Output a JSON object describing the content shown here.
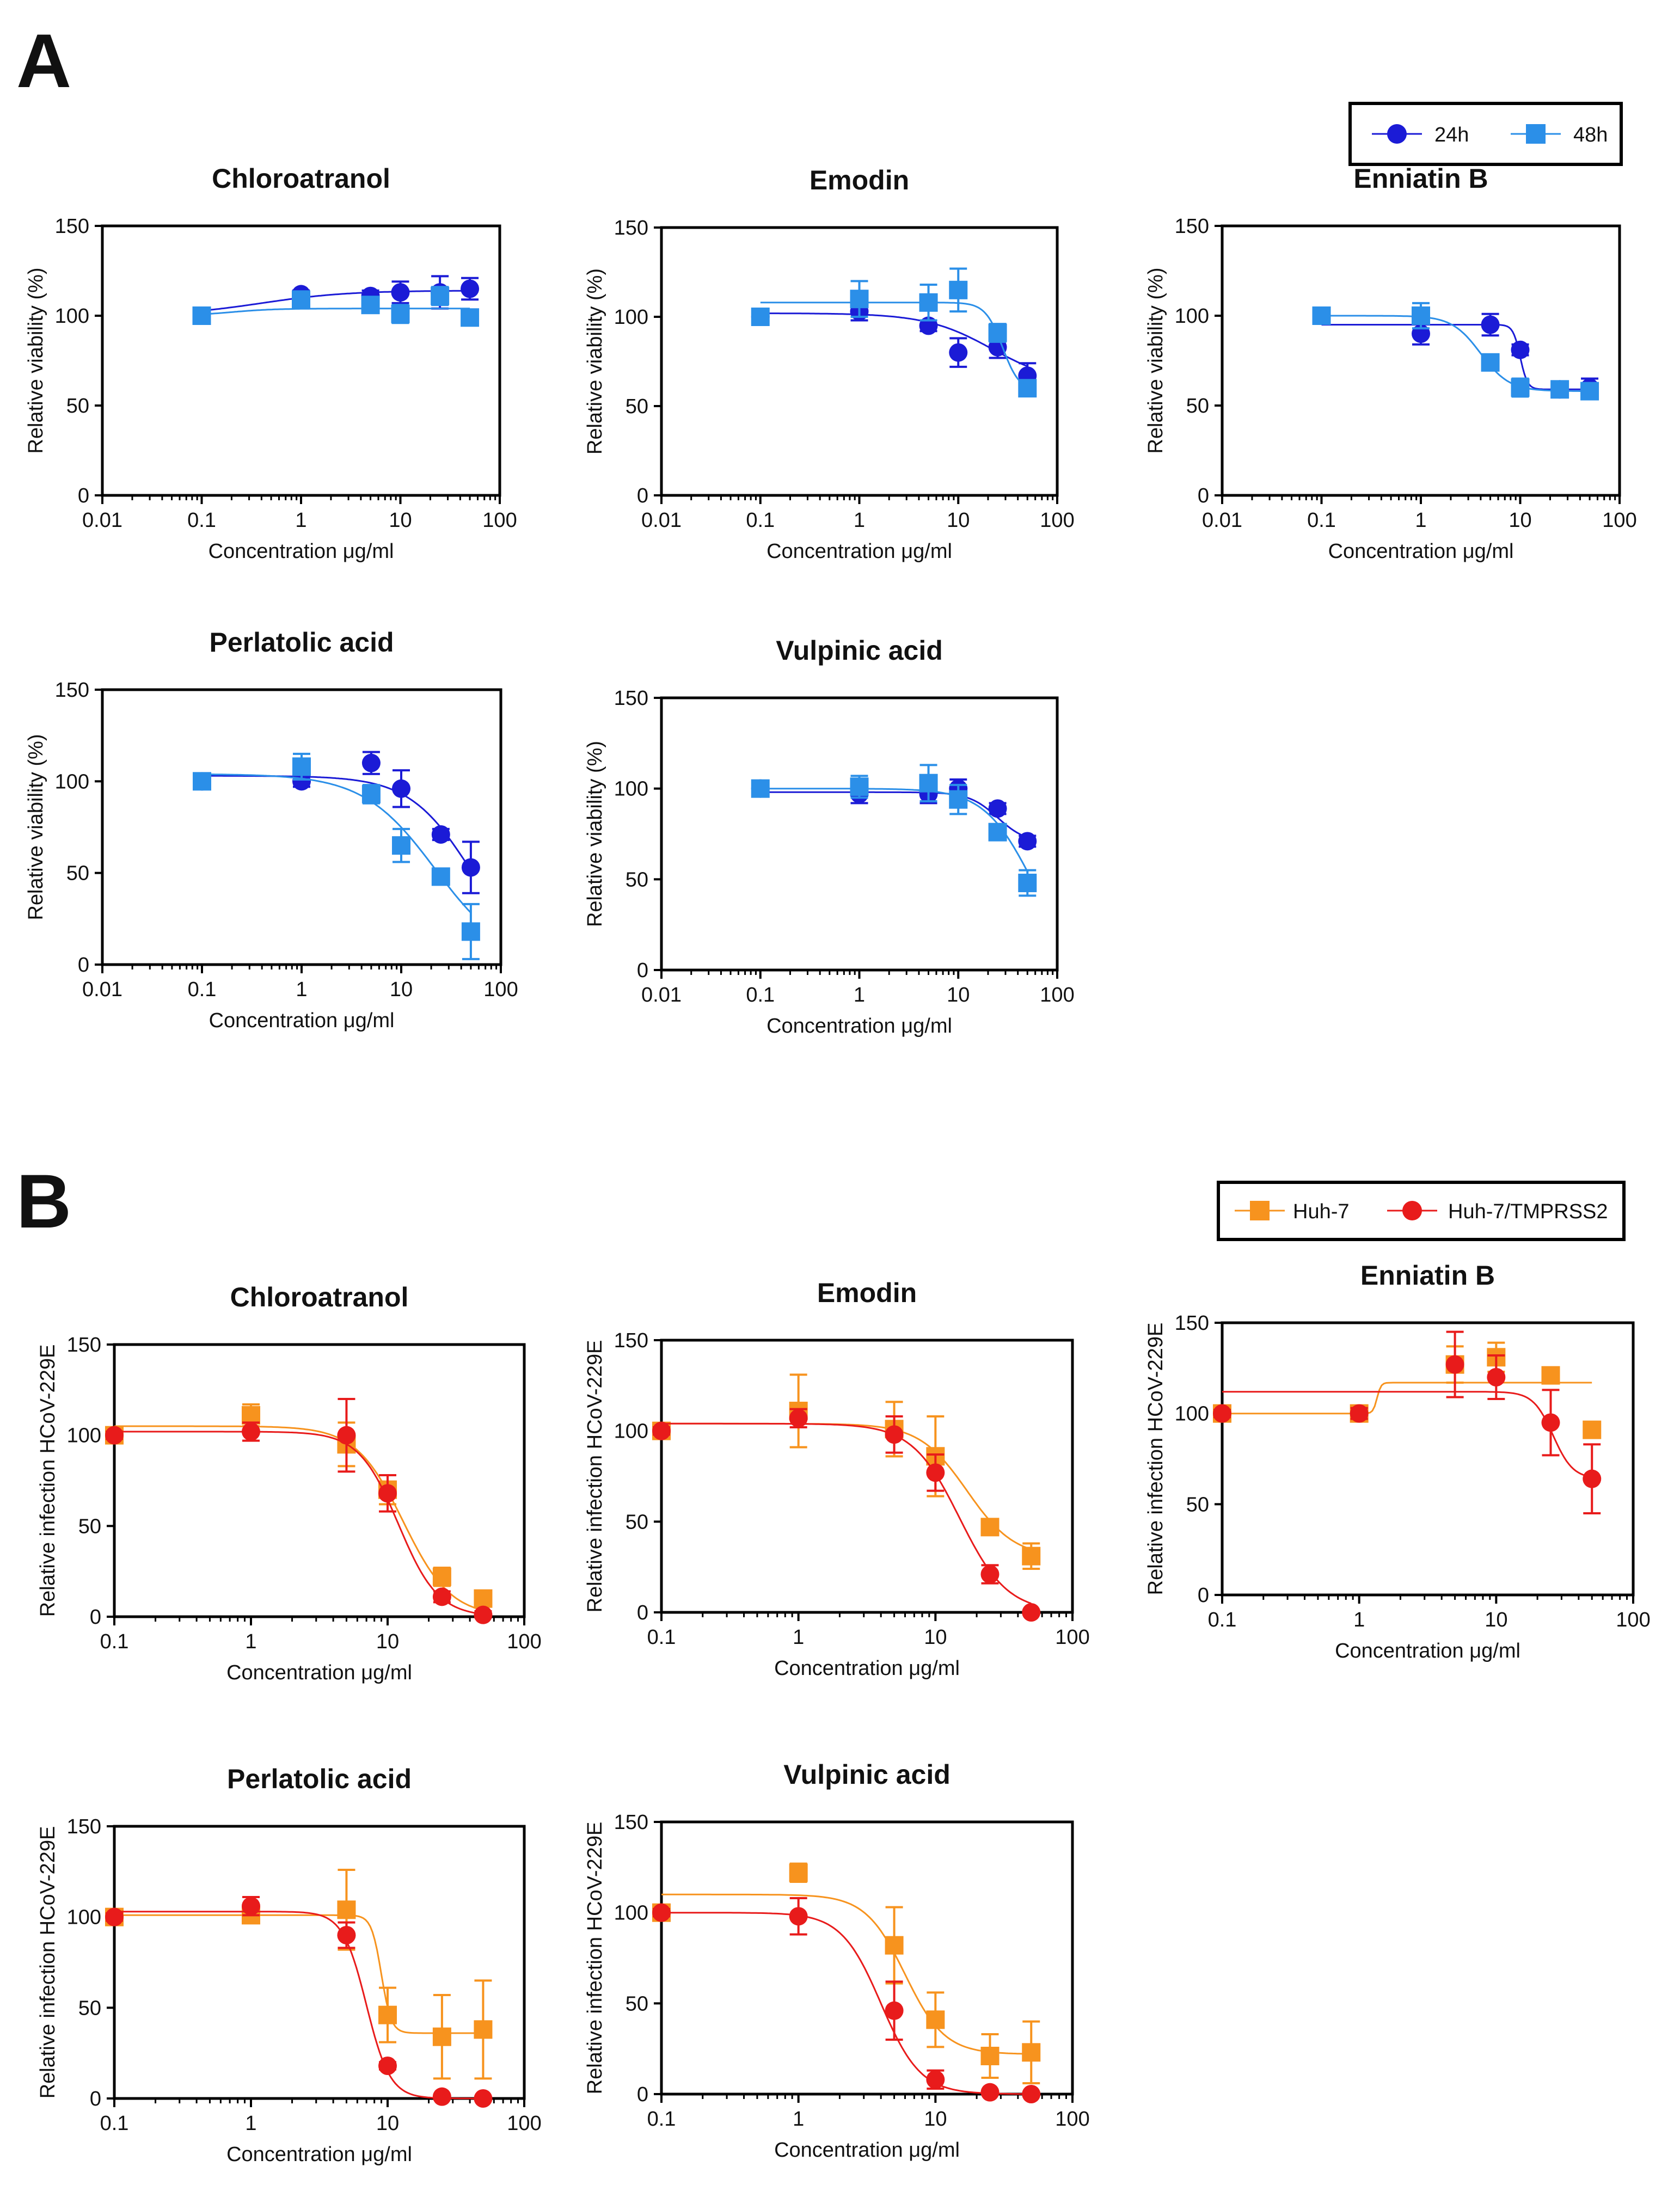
{
  "panels": [
    "A",
    "B"
  ],
  "colors": {
    "24h": "#1b1bd6",
    "48h": "#2b8fe8",
    "huh7": "#f7931e",
    "huh7_tmprss2": "#e81b1b"
  },
  "legend_A": {
    "items": [
      {
        "label": "24h",
        "marker": "circle",
        "color": "#1b1bd6"
      },
      {
        "label": "48h",
        "marker": "square",
        "color": "#2b8fe8"
      }
    ]
  },
  "legend_B": {
    "items": [
      {
        "label": "Huh-7",
        "marker": "square",
        "color": "#f7931e"
      },
      {
        "label": "Huh-7/TMPRSS2",
        "marker": "circle",
        "color": "#e81b1b"
      }
    ]
  },
  "chart_data": [
    {
      "panel": "A",
      "type": "scatter",
      "title": "Chloroatranol",
      "xlabel": "Concentration μg/ml",
      "ylabel": "Relative viability (%)",
      "xscale": "log",
      "xlim": [
        0.01,
        100
      ],
      "ylim": [
        0,
        150
      ],
      "xticks": [
        "0.01",
        "0.1",
        "1",
        "10",
        "100"
      ],
      "yticks": [
        "0",
        "50",
        "100",
        "150"
      ],
      "series": [
        {
          "name": "24h",
          "marker": "circle",
          "x": [
            0.1,
            1,
            5,
            10,
            25,
            50
          ],
          "y": [
            100,
            112,
            111,
            113,
            113,
            115
          ],
          "err": [
            3,
            2,
            3,
            6,
            9,
            6
          ],
          "fit": {
            "bottom": 100,
            "top": 114,
            "ec50": 0.4,
            "hill": 1
          }
        },
        {
          "name": "48h",
          "marker": "square",
          "x": [
            0.1,
            1,
            5,
            10,
            25,
            50
          ],
          "y": [
            100,
            109,
            106,
            101,
            111,
            99
          ],
          "err": [
            3,
            2,
            3,
            5,
            5,
            3
          ],
          "fit": {
            "bottom": 100,
            "top": 104,
            "ec50": 0.2,
            "hill": 2
          }
        }
      ]
    },
    {
      "panel": "A",
      "type": "scatter",
      "title": "Emodin",
      "xlabel": "Concentration μg/ml",
      "ylabel": "Relative viability (%)",
      "xscale": "log",
      "xlim": [
        0.01,
        100
      ],
      "ylim": [
        0,
        150
      ],
      "xticks": [
        "0.01",
        "0.1",
        "1",
        "10",
        "100"
      ],
      "yticks": [
        "0",
        "50",
        "100",
        "150"
      ],
      "series": [
        {
          "name": "24h",
          "marker": "circle",
          "x": [
            0.1,
            1,
            5,
            10,
            25,
            50
          ],
          "y": [
            100,
            103,
            95,
            80,
            83,
            67
          ],
          "err": [
            2,
            5,
            3,
            8,
            6,
            7
          ],
          "fit": {
            "bottom": 62,
            "top": 102,
            "ec50": 22,
            "hill": -1.3
          }
        },
        {
          "name": "48h",
          "marker": "square",
          "x": [
            0.1,
            1,
            5,
            10,
            25,
            50
          ],
          "y": [
            100,
            110,
            108,
            115,
            91,
            60
          ],
          "err": [
            3,
            10,
            10,
            12,
            5,
            4
          ],
          "fit": {
            "bottom": 58,
            "top": 108,
            "ec50": 28,
            "hill": -5
          }
        }
      ]
    },
    {
      "panel": "A",
      "type": "scatter",
      "title": "Enniatin B",
      "xlabel": "Concentration μg/ml",
      "ylabel": "Relative viability (%)",
      "xscale": "log",
      "xlim": [
        0.01,
        100
      ],
      "ylim": [
        0,
        150
      ],
      "xticks": [
        "0.01",
        "0.1",
        "1",
        "10",
        "100"
      ],
      "yticks": [
        "0",
        "50",
        "100",
        "150"
      ],
      "series": [
        {
          "name": "24h",
          "marker": "circle",
          "x": [
            0.1,
            1,
            5,
            10,
            25,
            50
          ],
          "y": [
            100,
            90,
            95,
            81,
            59,
            60
          ],
          "err": [
            3,
            6,
            6,
            3,
            3,
            5
          ],
          "fit": {
            "bottom": 59,
            "top": 95,
            "ec50": 10,
            "hill": -12
          }
        },
        {
          "name": "48h",
          "marker": "square",
          "x": [
            0.1,
            1,
            5,
            10,
            25,
            50
          ],
          "y": [
            100,
            100,
            74,
            60,
            59,
            58
          ],
          "err": [
            3,
            7,
            4,
            5,
            3,
            3
          ],
          "fit": {
            "bottom": 58,
            "top": 100,
            "ec50": 4,
            "hill": -3
          }
        }
      ]
    },
    {
      "panel": "A",
      "type": "scatter",
      "title": "Perlatolic acid",
      "xlabel": "Concentration μg/ml",
      "ylabel": "Relative viability (%)",
      "xscale": "log",
      "xlim": [
        0.01,
        100
      ],
      "ylim": [
        0,
        150
      ],
      "xticks": [
        "0.01",
        "0.1",
        "1",
        "10",
        "100"
      ],
      "yticks": [
        "0",
        "50",
        "100",
        "150"
      ],
      "series": [
        {
          "name": "24h",
          "marker": "circle",
          "x": [
            0.1,
            1,
            5,
            10,
            25,
            50
          ],
          "y": [
            100,
            100,
            110,
            96,
            71,
            53
          ],
          "err": [
            3,
            3,
            6,
            10,
            3,
            14
          ],
          "fit": {
            "bottom": 0,
            "top": 103,
            "ec50": 50,
            "hill": -1.4
          }
        },
        {
          "name": "48h",
          "marker": "square",
          "x": [
            0.1,
            1,
            5,
            10,
            25,
            50
          ],
          "y": [
            100,
            108,
            93,
            65,
            48,
            18
          ],
          "err": [
            3,
            7,
            5,
            9,
            3,
            15
          ],
          "fit": {
            "bottom": 0,
            "top": 104,
            "ec50": 22,
            "hill": -1.2
          }
        }
      ]
    },
    {
      "panel": "A",
      "type": "scatter",
      "title": "Vulpinic acid",
      "xlabel": "Concentration μg/ml",
      "ylabel": "Relative viability (%)",
      "xscale": "log",
      "xlim": [
        0.01,
        100
      ],
      "ylim": [
        0,
        150
      ],
      "xticks": [
        "0.01",
        "0.1",
        "1",
        "10",
        "100"
      ],
      "yticks": [
        "0",
        "50",
        "100",
        "150"
      ],
      "series": [
        {
          "name": "24h",
          "marker": "circle",
          "x": [
            0.1,
            1,
            5,
            10,
            25,
            50
          ],
          "y": [
            100,
            97,
            97,
            100,
            89,
            71
          ],
          "err": [
            2,
            5,
            5,
            5,
            3,
            3
          ],
          "fit": {
            "bottom": 70,
            "top": 98,
            "ec50": 25,
            "hill": -3
          }
        },
        {
          "name": "48h",
          "marker": "square",
          "x": [
            0.1,
            1,
            5,
            10,
            25,
            50
          ],
          "y": [
            100,
            101,
            103,
            94,
            76,
            48
          ],
          "err": [
            3,
            6,
            10,
            8,
            4,
            7
          ],
          "fit": {
            "bottom": 0,
            "top": 100,
            "ec50": 55,
            "hill": -1.8
          }
        }
      ]
    },
    {
      "panel": "B",
      "type": "scatter",
      "title": "Chloroatranol",
      "xlabel": "Concentration μg/ml",
      "ylabel": "Relative infection HCoV-229E",
      "xscale": "log",
      "xlim": [
        0.1,
        100
      ],
      "ylim": [
        0,
        150
      ],
      "xticks": [
        "0.1",
        "1",
        "10",
        "100"
      ],
      "yticks": [
        "0",
        "50",
        "100",
        "150"
      ],
      "series": [
        {
          "name": "Huh-7",
          "marker": "square",
          "x": [
            0.1,
            1,
            5,
            10,
            25,
            50
          ],
          "y": [
            100,
            111,
            95,
            70,
            22,
            10
          ],
          "err": [
            2,
            6,
            12,
            8,
            5,
            4
          ],
          "fit": {
            "bottom": 0,
            "top": 105,
            "ec50": 13,
            "hill": -2.5
          }
        },
        {
          "name": "Huh-7/TMPRSS2",
          "marker": "circle",
          "x": [
            0.1,
            1,
            5,
            10,
            25,
            50
          ],
          "y": [
            100,
            102,
            100,
            68,
            11,
            1
          ],
          "err": [
            2,
            5,
            20,
            10,
            3,
            2
          ],
          "fit": {
            "bottom": 0,
            "top": 102,
            "ec50": 12,
            "hill": -3
          }
        }
      ]
    },
    {
      "panel": "B",
      "type": "scatter",
      "title": "Emodin",
      "xlabel": "Concentration μg/ml",
      "ylabel": "Relative infection HCoV-229E",
      "xscale": "log",
      "xlim": [
        0.1,
        100
      ],
      "ylim": [
        0,
        150
      ],
      "xticks": [
        "0.1",
        "1",
        "10",
        "100"
      ],
      "yticks": [
        "0",
        "50",
        "100",
        "150"
      ],
      "series": [
        {
          "name": "Huh-7",
          "marker": "square",
          "x": [
            0.1,
            1,
            5,
            10,
            25,
            50
          ],
          "y": [
            100,
            111,
            101,
            86,
            47,
            31
          ],
          "err": [
            2,
            20,
            15,
            22,
            3,
            7
          ],
          "fit": {
            "bottom": 30,
            "top": 104,
            "ec50": 17,
            "hill": -2.5
          }
        },
        {
          "name": "Huh-7/TMPRSS2",
          "marker": "circle",
          "x": [
            0.1,
            1,
            5,
            10,
            25,
            50
          ],
          "y": [
            100,
            107,
            98,
            77,
            21,
            0
          ],
          "err": [
            2,
            5,
            10,
            10,
            5,
            1
          ],
          "fit": {
            "bottom": 0,
            "top": 104,
            "ec50": 15,
            "hill": -2.5
          }
        }
      ]
    },
    {
      "panel": "B",
      "type": "scatter",
      "title": "Enniatin B",
      "xlabel": "Concentration μg/ml",
      "ylabel": "Relative infection HCoV-229E",
      "xscale": "log",
      "xlim": [
        0.1,
        100
      ],
      "ylim": [
        0,
        150
      ],
      "xticks": [
        "0.1",
        "1",
        "10",
        "100"
      ],
      "yticks": [
        "0",
        "50",
        "100",
        "150"
      ],
      "series": [
        {
          "name": "Huh-7",
          "marker": "square",
          "x": [
            0.1,
            1,
            5,
            10,
            25,
            50
          ],
          "y": [
            100,
            100,
            127,
            131,
            121,
            91
          ],
          "err": [
            2,
            3,
            10,
            8,
            2,
            3
          ],
          "fit": {
            "bottom": 100,
            "top": 117,
            "ec50": 1.35,
            "hill": 30
          }
        },
        {
          "name": "Huh-7/TMPRSS2",
          "marker": "circle",
          "x": [
            0.1,
            1,
            5,
            10,
            25,
            50
          ],
          "y": [
            100,
            100,
            127,
            120,
            95,
            64
          ],
          "err": [
            2,
            3,
            18,
            12,
            18,
            19
          ],
          "fit": {
            "bottom": 64,
            "top": 112,
            "ec50": 26,
            "hill": -6
          }
        }
      ]
    },
    {
      "panel": "B",
      "type": "scatter",
      "title": "Perlatolic acid",
      "xlabel": "Concentration μg/ml",
      "ylabel": "Relative infection HCoV-229E",
      "xscale": "log",
      "xlim": [
        0.1,
        100
      ],
      "ylim": [
        0,
        150
      ],
      "xticks": [
        "0.1",
        "1",
        "10",
        "100"
      ],
      "yticks": [
        "0",
        "50",
        "100",
        "150"
      ],
      "series": [
        {
          "name": "Huh-7",
          "marker": "square",
          "x": [
            0.1,
            1,
            5,
            10,
            25,
            50
          ],
          "y": [
            100,
            101,
            104,
            46,
            34,
            38
          ],
          "err": [
            2,
            3,
            22,
            15,
            23,
            27
          ],
          "fit": {
            "bottom": 36,
            "top": 101,
            "ec50": 9,
            "hill": -12
          }
        },
        {
          "name": "Huh-7/TMPRSS2",
          "marker": "circle",
          "x": [
            0.1,
            1,
            5,
            10,
            25,
            50
          ],
          "y": [
            100,
            106,
            90,
            18,
            1,
            0
          ],
          "err": [
            2,
            5,
            7,
            2,
            1,
            1
          ],
          "fit": {
            "bottom": 0,
            "top": 103,
            "ec50": 7,
            "hill": -5
          }
        }
      ]
    },
    {
      "panel": "B",
      "type": "scatter",
      "title": "Vulpinic acid",
      "xlabel": "Concentration μg/ml",
      "ylabel": "Relative infection HCoV-229E",
      "xscale": "log",
      "xlim": [
        0.1,
        100
      ],
      "ylim": [
        0,
        150
      ],
      "xticks": [
        "0.1",
        "1",
        "10",
        "100"
      ],
      "yticks": [
        "0",
        "50",
        "100",
        "150"
      ],
      "series": [
        {
          "name": "Huh-7",
          "marker": "square",
          "x": [
            0.1,
            1,
            5,
            10,
            25,
            50
          ],
          "y": [
            100,
            122,
            82,
            41,
            21,
            23
          ],
          "err": [
            2,
            5,
            21,
            15,
            12,
            17
          ],
          "fit": {
            "bottom": 22,
            "top": 110,
            "ec50": 6,
            "hill": -3
          }
        },
        {
          "name": "Huh-7/TMPRSS2",
          "marker": "circle",
          "x": [
            0.1,
            1,
            5,
            10,
            25,
            50
          ],
          "y": [
            100,
            98,
            46,
            8,
            1,
            0
          ],
          "err": [
            2,
            10,
            16,
            5,
            1,
            1
          ],
          "fit": {
            "bottom": 0,
            "top": 100,
            "ec50": 4,
            "hill": -3
          }
        }
      ]
    }
  ]
}
